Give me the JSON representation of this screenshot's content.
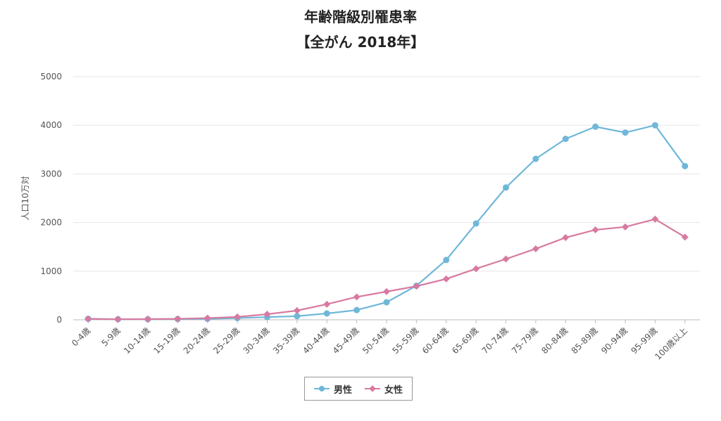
{
  "title_line1": "年齢階級別罹患率",
  "title_line2": "【全がん 2018年】",
  "chart_data": {
    "type": "line",
    "title": "年齢階級別罹患率 【全がん 2018年】",
    "ylabel": "人口10万対",
    "xlabel": "",
    "ylim": [
      0,
      5000
    ],
    "yticks": [
      "0",
      "1000",
      "2000",
      "3000",
      "4000",
      "5000"
    ],
    "grid": true,
    "legend_position": "bottom-center",
    "categories": [
      "0-4歳",
      "5-9歳",
      "10-14歳",
      "15-19歳",
      "20-24歳",
      "25-29歳",
      "30-34歳",
      "35-39歳",
      "40-44歳",
      "45-49歳",
      "50-54歳",
      "55-59歳",
      "60-64歳",
      "65-69歳",
      "70-74歳",
      "75-79歳",
      "80-84歳",
      "85-89歳",
      "90-94歳",
      "95-99歳",
      "100歳以上"
    ],
    "series": [
      {
        "name": "男性",
        "color": "#6fb7d9",
        "marker": "circle",
        "values": [
          20,
          12,
          12,
          15,
          20,
          35,
          55,
          75,
          130,
          200,
          360,
          700,
          1230,
          1980,
          2720,
          3310,
          3720,
          3970,
          3850,
          4000,
          3160
        ]
      },
      {
        "name": "女性",
        "color": "#d87aa0",
        "marker": "diamond",
        "values": [
          18,
          12,
          14,
          20,
          35,
          60,
          115,
          190,
          320,
          470,
          580,
          690,
          840,
          1050,
          1250,
          1460,
          1690,
          1850,
          1910,
          2070,
          1700
        ]
      }
    ]
  }
}
